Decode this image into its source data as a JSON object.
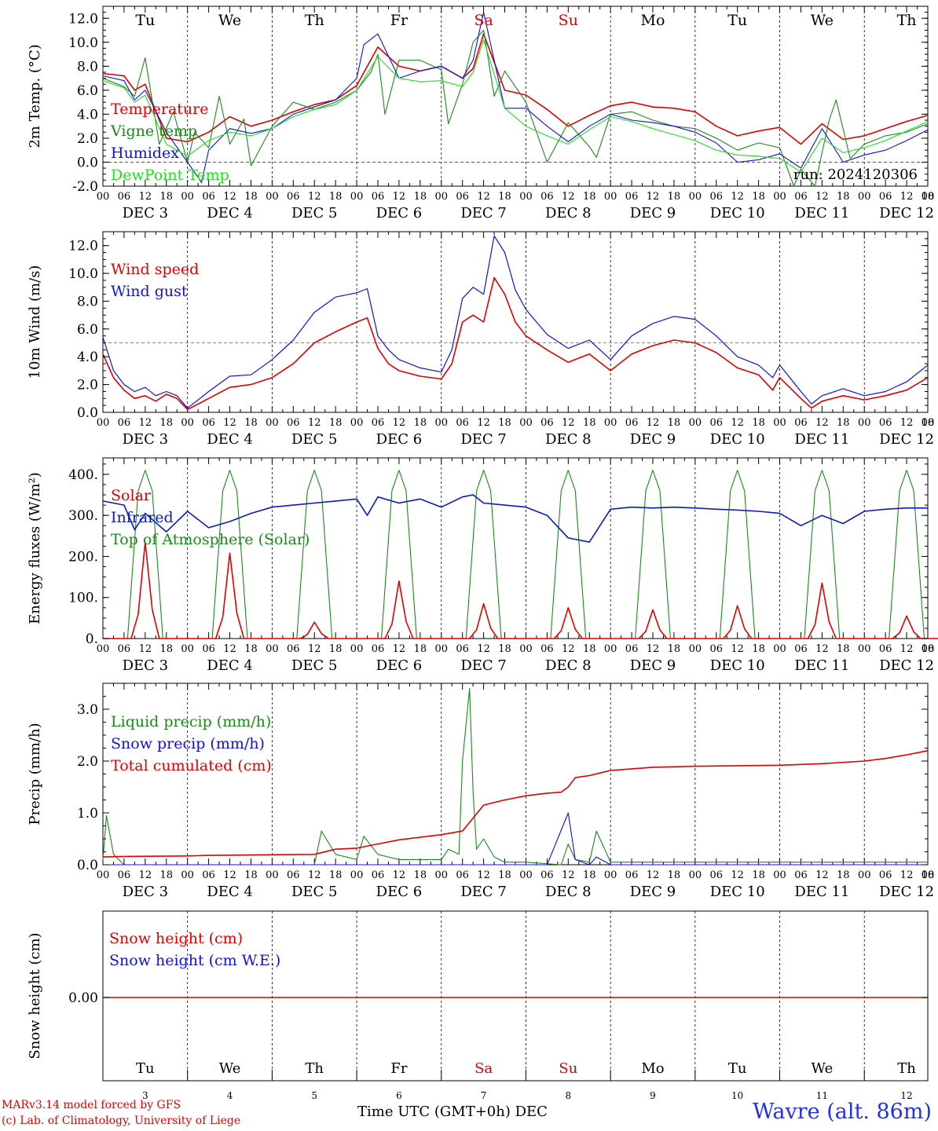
{
  "footer": {
    "model_credit": "MARv3.14 model forced by GFS",
    "lab_credit": "(c) Lab. of Climatology, University of Liege",
    "x_title": "Time UTC (GMT+0h) DEC",
    "station": "Wavre (alt. 86m)"
  },
  "run_label": "run: 2024120306",
  "weekdays": [
    "Tu",
    "We",
    "Th",
    "Fr",
    "Sa",
    "Su",
    "Mo",
    "Tu",
    "We",
    "Th"
  ],
  "weekend_days": [
    "Sa",
    "Su"
  ],
  "dates": [
    "DEC  3",
    "DEC  4",
    "DEC  5",
    "DEC  6",
    "DEC  7",
    "DEC  8",
    "DEC  9",
    "DEC 10",
    "DEC 11",
    "DEC 12"
  ],
  "day_numbers": [
    "3",
    "4",
    "5",
    "6",
    "7",
    "8",
    "9",
    "10",
    "11",
    "12"
  ],
  "hour_ticks": [
    "00",
    "06",
    "12",
    "18"
  ],
  "last_hour_tick": "00",
  "colors": {
    "red": "#e00000",
    "green": "#1a8a1a",
    "blue": "#1010e0",
    "lightgreen": "#20e020",
    "navy": "#0a1ac8"
  },
  "chart_data": [
    {
      "type": "line",
      "ylabel": "2m Temp. (°C)",
      "ylim": [
        -2,
        13
      ],
      "yticks": [
        "-2.0",
        "0.0",
        "2.0",
        "4.0",
        "6.0",
        "8.0",
        "10.0",
        "12.0"
      ],
      "reference_line": 0,
      "x_unit": "hours since DEC 3 00 UTC",
      "series": [
        {
          "name": "Temperature",
          "color": "red",
          "x": [
            0,
            6,
            9,
            12,
            18,
            24,
            30,
            36,
            42,
            48,
            54,
            60,
            66,
            72,
            78,
            84,
            90,
            96,
            102,
            105,
            108,
            114,
            120,
            126,
            132,
            138,
            144,
            150,
            156,
            162,
            168,
            174,
            180,
            186,
            192,
            198,
            204,
            210,
            216,
            222,
            228,
            234
          ],
          "y": [
            7.4,
            7.2,
            6.0,
            6.5,
            2.0,
            1.7,
            2.5,
            3.8,
            3.0,
            3.5,
            4.2,
            4.8,
            5.2,
            6.4,
            9.6,
            8.0,
            7.6,
            8.0,
            7.0,
            7.8,
            10.7,
            6.0,
            5.6,
            4.4,
            3.0,
            3.9,
            4.7,
            5.0,
            4.6,
            4.5,
            4.2,
            3.0,
            2.2,
            2.6,
            2.9,
            1.5,
            3.2,
            1.9,
            2.2,
            2.8,
            3.4,
            3.9
          ]
        },
        {
          "name": "Vigne temp",
          "color": "green",
          "x": [
            0,
            6,
            9,
            12,
            16,
            20,
            24,
            26,
            30,
            33,
            36,
            40,
            42,
            48,
            54,
            60,
            66,
            72,
            76,
            78,
            80,
            84,
            90,
            96,
            98,
            102,
            105,
            108,
            111,
            114,
            120,
            126,
            132,
            138,
            140,
            144,
            150,
            156,
            162,
            168,
            174,
            180,
            186,
            192,
            196,
            198,
            202,
            204,
            206,
            208,
            212,
            216,
            222,
            228,
            234
          ],
          "y": [
            7.0,
            6.3,
            5.5,
            8.7,
            1.5,
            4.2,
            0.0,
            2.5,
            1.2,
            5.5,
            1.5,
            3.6,
            -0.3,
            3.0,
            5.0,
            4.4,
            5.0,
            6.0,
            7.5,
            9.0,
            4.0,
            8.5,
            8.5,
            7.7,
            3.2,
            6.5,
            10.0,
            11.0,
            5.5,
            7.6,
            5.0,
            0.0,
            3.3,
            1.3,
            0.4,
            4.0,
            4.2,
            3.5,
            3.0,
            2.8,
            2.0,
            1.0,
            1.6,
            1.2,
            -2.0,
            -0.6,
            -2.0,
            0.8,
            3.5,
            5.2,
            0.3,
            1.5,
            2.2,
            2.5,
            3.2
          ]
        },
        {
          "name": "Humidex",
          "color": "blue",
          "x": [
            0,
            6,
            9,
            12,
            18,
            24,
            28,
            30,
            36,
            42,
            48,
            54,
            60,
            66,
            72,
            74,
            78,
            84,
            90,
            96,
            102,
            105,
            108,
            114,
            120,
            126,
            132,
            138,
            144,
            150,
            156,
            162,
            168,
            174,
            180,
            186,
            192,
            198,
            204,
            210,
            216,
            222,
            228,
            234
          ],
          "y": [
            7.2,
            6.8,
            5.2,
            6.0,
            2.5,
            0.0,
            -1.7,
            1.0,
            2.8,
            2.4,
            2.8,
            4.0,
            4.6,
            5.2,
            7.0,
            9.8,
            10.7,
            7.0,
            7.6,
            8.0,
            7.0,
            8.5,
            12.5,
            4.5,
            4.5,
            3.0,
            1.7,
            3.0,
            4.0,
            3.5,
            3.3,
            3.0,
            2.5,
            1.6,
            0.0,
            0.2,
            0.7,
            -0.5,
            2.8,
            0.0,
            0.6,
            1.0,
            1.8,
            2.7
          ]
        },
        {
          "name": "DewPoint Temp",
          "color": "lightgreen",
          "x": [
            0,
            6,
            9,
            12,
            18,
            24,
            30,
            36,
            42,
            48,
            54,
            60,
            66,
            72,
            78,
            84,
            90,
            96,
            102,
            105,
            108,
            114,
            120,
            126,
            132,
            138,
            144,
            150,
            156,
            162,
            168,
            174,
            180,
            186,
            192,
            198,
            204,
            210,
            216,
            222,
            228,
            234
          ],
          "y": [
            6.8,
            6.2,
            5.0,
            5.6,
            1.5,
            0.5,
            1.8,
            2.5,
            2.2,
            2.8,
            3.8,
            4.4,
            4.8,
            6.0,
            8.8,
            7.0,
            6.7,
            6.8,
            6.3,
            7.5,
            10.2,
            4.5,
            3.0,
            2.2,
            1.5,
            2.7,
            3.8,
            3.4,
            2.8,
            2.3,
            1.8,
            1.0,
            0.6,
            0.5,
            0.3,
            -0.8,
            2.0,
            0.8,
            1.2,
            1.8,
            2.6,
            3.4
          ]
        }
      ],
      "legend": [
        "Temperature",
        "Vigne temp",
        "Humidex",
        "DewPoint Temp"
      ]
    },
    {
      "type": "line",
      "ylabel": "10m Wind (m/s)",
      "ylim": [
        0,
        13
      ],
      "yticks": [
        "0.0",
        "2.0",
        "4.0",
        "6.0",
        "8.0",
        "10.0",
        "12.0"
      ],
      "reference_line": 5,
      "series": [
        {
          "name": "Wind speed",
          "color": "red",
          "x": [
            0,
            3,
            6,
            9,
            12,
            15,
            18,
            21,
            24,
            30,
            36,
            42,
            48,
            54,
            60,
            66,
            72,
            75,
            78,
            81,
            84,
            90,
            96,
            99,
            102,
            105,
            108,
            111,
            114,
            117,
            120,
            126,
            132,
            138,
            144,
            150,
            156,
            162,
            168,
            174,
            180,
            186,
            190,
            192,
            198,
            201,
            204,
            210,
            216,
            222,
            228,
            234
          ],
          "y": [
            4.2,
            2.5,
            1.6,
            1.0,
            1.2,
            0.8,
            1.3,
            1.0,
            0.2,
            1.0,
            1.8,
            2.0,
            2.5,
            3.5,
            5.0,
            5.8,
            6.5,
            6.8,
            4.6,
            3.5,
            3.0,
            2.6,
            2.4,
            3.5,
            6.5,
            7.0,
            6.5,
            9.7,
            8.5,
            6.5,
            5.5,
            4.5,
            3.6,
            4.2,
            3.0,
            4.2,
            4.8,
            5.2,
            5.0,
            4.3,
            3.2,
            2.7,
            1.6,
            2.5,
            1.0,
            0.3,
            0.8,
            1.2,
            0.9,
            1.2,
            1.6,
            2.5
          ]
        },
        {
          "name": "Wind gust",
          "color": "blue",
          "x": [
            0,
            3,
            6,
            9,
            12,
            15,
            18,
            21,
            24,
            30,
            36,
            42,
            48,
            54,
            60,
            66,
            72,
            75,
            78,
            81,
            84,
            90,
            96,
            99,
            102,
            105,
            108,
            111,
            114,
            117,
            120,
            126,
            132,
            138,
            144,
            150,
            156,
            162,
            168,
            174,
            180,
            186,
            190,
            192,
            198,
            201,
            204,
            210,
            216,
            222,
            228,
            234
          ],
          "y": [
            5.4,
            3.0,
            2.0,
            1.5,
            1.8,
            1.2,
            1.5,
            1.2,
            0.3,
            1.5,
            2.6,
            2.7,
            3.8,
            5.2,
            7.2,
            8.3,
            8.6,
            8.9,
            5.5,
            4.5,
            3.8,
            3.2,
            2.9,
            4.5,
            8.2,
            9.0,
            8.5,
            12.7,
            11.5,
            8.8,
            7.4,
            5.6,
            4.6,
            5.2,
            3.8,
            5.5,
            6.4,
            6.9,
            6.7,
            5.5,
            4.0,
            3.4,
            2.5,
            3.4,
            1.5,
            0.6,
            1.2,
            1.7,
            1.2,
            1.5,
            2.2,
            3.4
          ]
        }
      ],
      "legend": [
        "Wind speed",
        "Wind gust"
      ]
    },
    {
      "type": "line",
      "ylabel": "Energy fluxes (W/m²)",
      "ylim": [
        0,
        440
      ],
      "yticks": [
        "0.",
        "100.",
        "200.",
        "300.",
        "400."
      ],
      "series": [
        {
          "name": "Solar",
          "color": "red",
          "peaks": [
            235,
            208,
            40,
            140,
            85,
            75,
            70,
            80,
            135,
            55
          ]
        },
        {
          "name": "Infrared",
          "color": "navy",
          "x": [
            0,
            6,
            9,
            12,
            18,
            24,
            30,
            36,
            42,
            48,
            54,
            60,
            66,
            72,
            75,
            78,
            84,
            90,
            96,
            102,
            105,
            108,
            114,
            120,
            126,
            132,
            138,
            144,
            150,
            156,
            162,
            168,
            174,
            180,
            186,
            192,
            198,
            204,
            210,
            216,
            222,
            228,
            234
          ],
          "y": [
            335,
            325,
            265,
            305,
            260,
            310,
            270,
            285,
            305,
            320,
            325,
            330,
            335,
            340,
            300,
            345,
            330,
            340,
            320,
            345,
            350,
            330,
            325,
            320,
            300,
            245,
            235,
            315,
            320,
            318,
            320,
            318,
            315,
            313,
            310,
            305,
            275,
            300,
            280,
            310,
            315,
            318,
            318
          ]
        },
        {
          "name": "Top of Atmosphere (Solar)",
          "color": "green",
          "peak": 410
        }
      ],
      "legend": [
        "Solar",
        "Infrared",
        "Top of Atmosphere (Solar)"
      ]
    },
    {
      "type": "line",
      "ylabel": "Precip (mm/h)",
      "ylim": [
        0,
        3.5
      ],
      "yticks": [
        "0.0",
        "1.0",
        "2.0",
        "3.0"
      ],
      "series": [
        {
          "name": "Liquid precip (mm/h)",
          "color": "green",
          "x": [
            0,
            1,
            3,
            6,
            24,
            60,
            62,
            66,
            72,
            74,
            78,
            84,
            96,
            98,
            101,
            102,
            104,
            105,
            106,
            108,
            111,
            114,
            120,
            130,
            132,
            134,
            138,
            140,
            144,
            234
          ],
          "y": [
            0.1,
            0.95,
            0.2,
            0.0,
            0.0,
            0.0,
            0.65,
            0.2,
            0.1,
            0.55,
            0.2,
            0.1,
            0.1,
            0.3,
            0.2,
            2.0,
            3.4,
            1.4,
            0.3,
            0.5,
            0.15,
            0.05,
            0.05,
            0.0,
            0.4,
            0.1,
            0.05,
            0.65,
            0.05,
            0.05
          ]
        },
        {
          "name": "Snow precip (mm/h)",
          "color": "blue",
          "x": [
            0,
            126,
            132,
            134,
            138,
            140,
            144,
            234
          ],
          "y": [
            0.0,
            0.0,
            1.0,
            0.1,
            0.0,
            0.15,
            0.0,
            0.0
          ]
        },
        {
          "name": "Total cumulated (cm)",
          "color": "red",
          "x": [
            0,
            6,
            24,
            30,
            60,
            66,
            72,
            78,
            84,
            96,
            102,
            105,
            108,
            114,
            120,
            126,
            130,
            132,
            134,
            138,
            144,
            150,
            156,
            168,
            180,
            192,
            204,
            216,
            222,
            228,
            234
          ],
          "y": [
            0.15,
            0.16,
            0.17,
            0.18,
            0.2,
            0.3,
            0.32,
            0.4,
            0.48,
            0.58,
            0.65,
            0.9,
            1.15,
            1.25,
            1.33,
            1.38,
            1.4,
            1.5,
            1.68,
            1.72,
            1.82,
            1.85,
            1.88,
            1.9,
            1.91,
            1.92,
            1.95,
            2.0,
            2.05,
            2.12,
            2.2
          ]
        }
      ],
      "legend": [
        "Liquid precip (mm/h)",
        "Snow precip (mm/h)",
        "Total cumulated (cm)"
      ]
    },
    {
      "type": "line",
      "ylabel": "Snow height (cm)",
      "yticks": [
        "0.00"
      ],
      "series": [
        {
          "name": "Snow height (cm)",
          "color": "red",
          "x": [
            0,
            234
          ],
          "y": [
            0,
            0
          ]
        }
      ],
      "legend": [
        "Snow height (cm)",
        "Snow height (cm W.E.)"
      ]
    }
  ]
}
